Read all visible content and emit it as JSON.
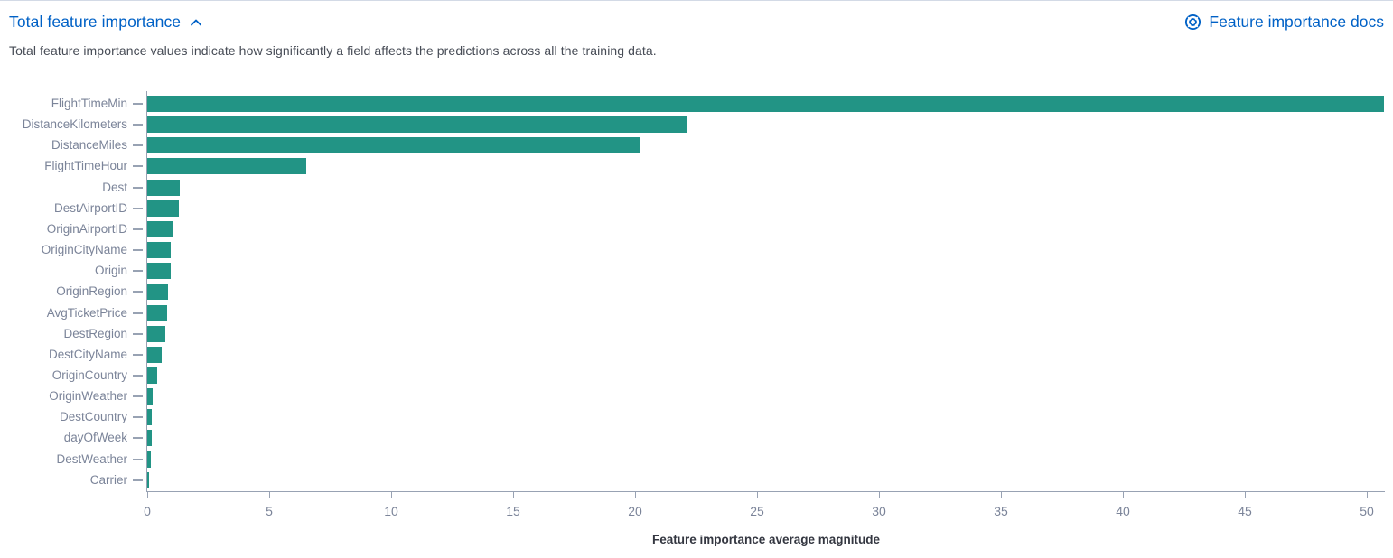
{
  "header": {
    "title": "Total feature importance",
    "docs_link_label": "Feature importance docs"
  },
  "description": "Total feature importance values indicate how significantly a field affects the predictions across all the training data.",
  "colors": {
    "link_blue": "#0061c6",
    "bar_teal": "#229485",
    "axis_line": "#98a2b3",
    "axis_label": "#7b8499",
    "axis_title": "#343741",
    "panel_border": "#d3dae6"
  },
  "chart_data": {
    "type": "bar",
    "orientation": "horizontal",
    "title": "Total feature importance",
    "xlabel": "Feature importance average magnitude",
    "ylabel": "",
    "categories": [
      "FlightTimeMin",
      "DistanceKilometers",
      "DistanceMiles",
      "FlightTimeHour",
      "Dest",
      "DestAirportID",
      "OriginAirportID",
      "OriginCityName",
      "Origin",
      "OriginRegion",
      "AvgTicketPrice",
      "DestRegion",
      "DestCityName",
      "OriginCountry",
      "OriginWeather",
      "DestCountry",
      "dayOfWeek",
      "DestWeather",
      "Carrier"
    ],
    "values": [
      50.7,
      22.1,
      20.2,
      6.5,
      1.35,
      1.3,
      1.07,
      0.97,
      0.95,
      0.87,
      0.82,
      0.73,
      0.6,
      0.42,
      0.22,
      0.18,
      0.18,
      0.15,
      0.05
    ],
    "xticks": [
      0,
      5,
      10,
      15,
      20,
      25,
      30,
      35,
      40,
      45,
      50
    ],
    "xlim": [
      0,
      50.7
    ],
    "grid": false,
    "legend": "none",
    "bar_color": "#229485"
  }
}
